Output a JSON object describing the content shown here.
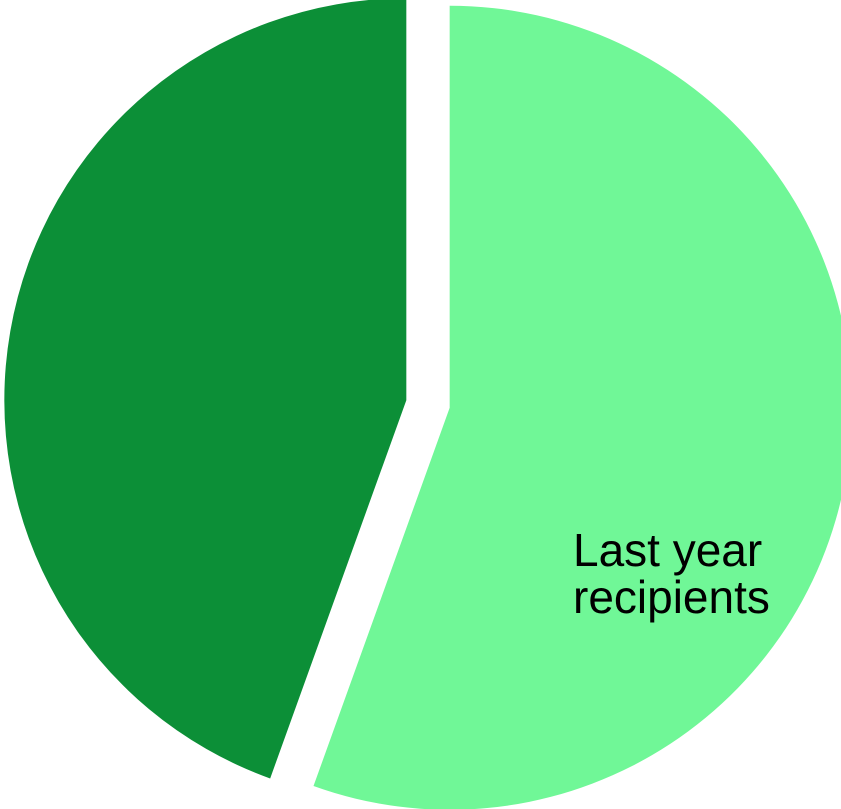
{
  "chart_data": {
    "type": "pie",
    "title": "",
    "slices": [
      {
        "label_lines": [
          "Last year",
          "recipients"
        ],
        "value": 55.5,
        "color": "#70f797"
      },
      {
        "label_lines": [],
        "value": 44.5,
        "color": "#0c8f37"
      }
    ],
    "start_angle_deg": 0,
    "direction": "clockwise",
    "exploded": true,
    "legend": "none"
  }
}
